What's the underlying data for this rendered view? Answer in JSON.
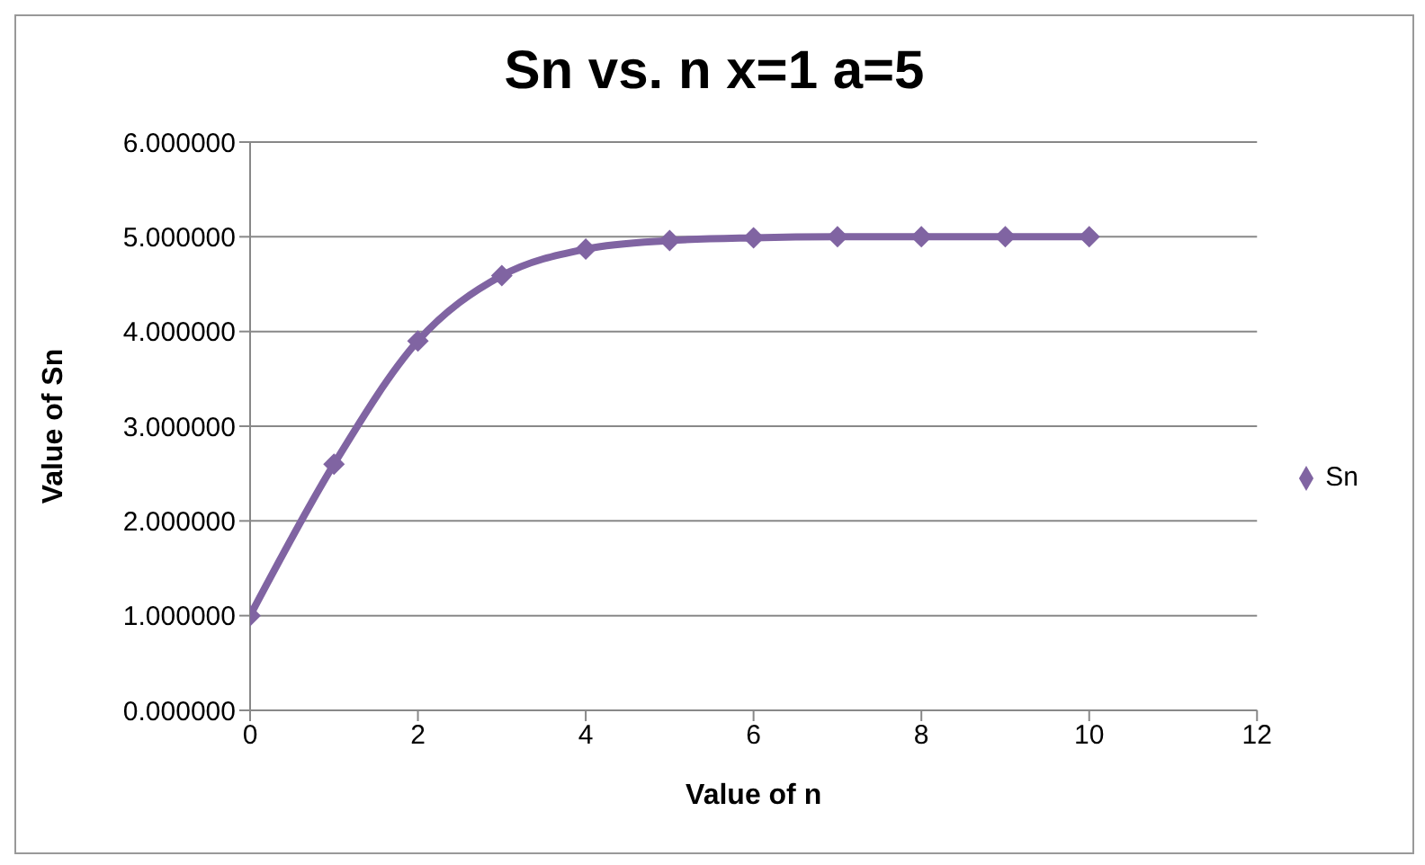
{
  "chart_data": {
    "type": "line",
    "title": "Sn vs. n x=1 a=5",
    "xlabel": "Value of n",
    "ylabel": "Value of Sn",
    "x": [
      0,
      1,
      2,
      3,
      4,
      5,
      6,
      7,
      8,
      9,
      10
    ],
    "series": [
      {
        "name": "Sn",
        "color": "#8064a2",
        "values": [
          1.0,
          2.6,
          3.9,
          4.59,
          4.87,
          4.96,
          4.99,
          5.0,
          5.0,
          5.0,
          5.0
        ]
      }
    ],
    "xlim": [
      0,
      12
    ],
    "xticks": [
      0,
      2,
      4,
      6,
      8,
      10,
      12
    ],
    "ylim": [
      0,
      6
    ],
    "yticks": [
      {
        "value": 0,
        "label": "0.000000"
      },
      {
        "value": 1,
        "label": "1.000000"
      },
      {
        "value": 2,
        "label": "2.000000"
      },
      {
        "value": 3,
        "label": "3.000000"
      },
      {
        "value": 4,
        "label": "4.000000"
      },
      {
        "value": 5,
        "label": "5.000000"
      },
      {
        "value": 6,
        "label": "6.000000"
      }
    ],
    "grid": "y",
    "legend": "right",
    "marker": "diamond",
    "line_style": "solid"
  }
}
